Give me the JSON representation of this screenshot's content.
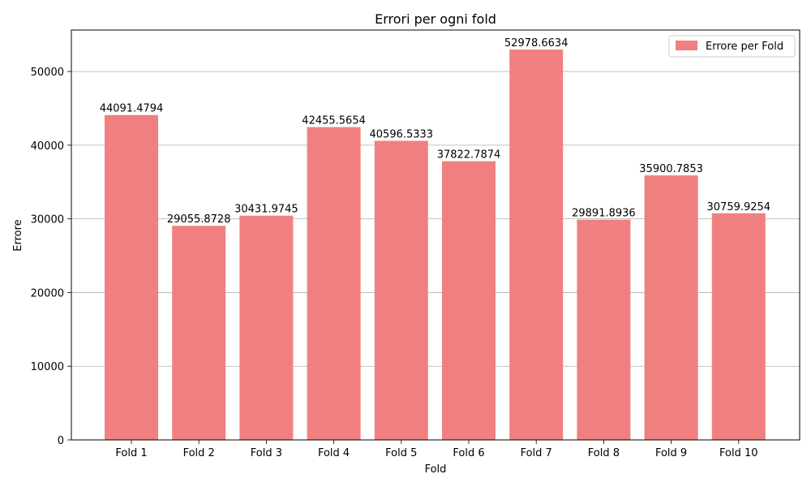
{
  "chart_data": {
    "type": "bar",
    "title": "Errori per ogni fold",
    "xlabel": "Fold",
    "ylabel": "Errore",
    "categories": [
      "Fold 1",
      "Fold 2",
      "Fold 3",
      "Fold 4",
      "Fold 5",
      "Fold 6",
      "Fold 7",
      "Fold 8",
      "Fold 9",
      "Fold 10"
    ],
    "series": [
      {
        "name": "Errore per Fold",
        "color": "#f08080",
        "values": [
          44091.4794,
          29055.8728,
          30431.9745,
          42455.5654,
          40596.5333,
          37822.7874,
          52978.6634,
          29891.8936,
          35900.7853,
          30759.9254
        ],
        "value_labels": [
          "44091.4794",
          "29055.8728",
          "30431.9745",
          "42455.5654",
          "40596.5333",
          "37822.7874",
          "52978.6634",
          "29891.8936",
          "35900.7853",
          "30759.9254"
        ]
      }
    ],
    "yticks": [
      0,
      10000,
      20000,
      30000,
      40000,
      50000
    ],
    "ylim": [
      0,
      55628
    ],
    "grid": "y-axis",
    "legend_position": "top-right"
  }
}
